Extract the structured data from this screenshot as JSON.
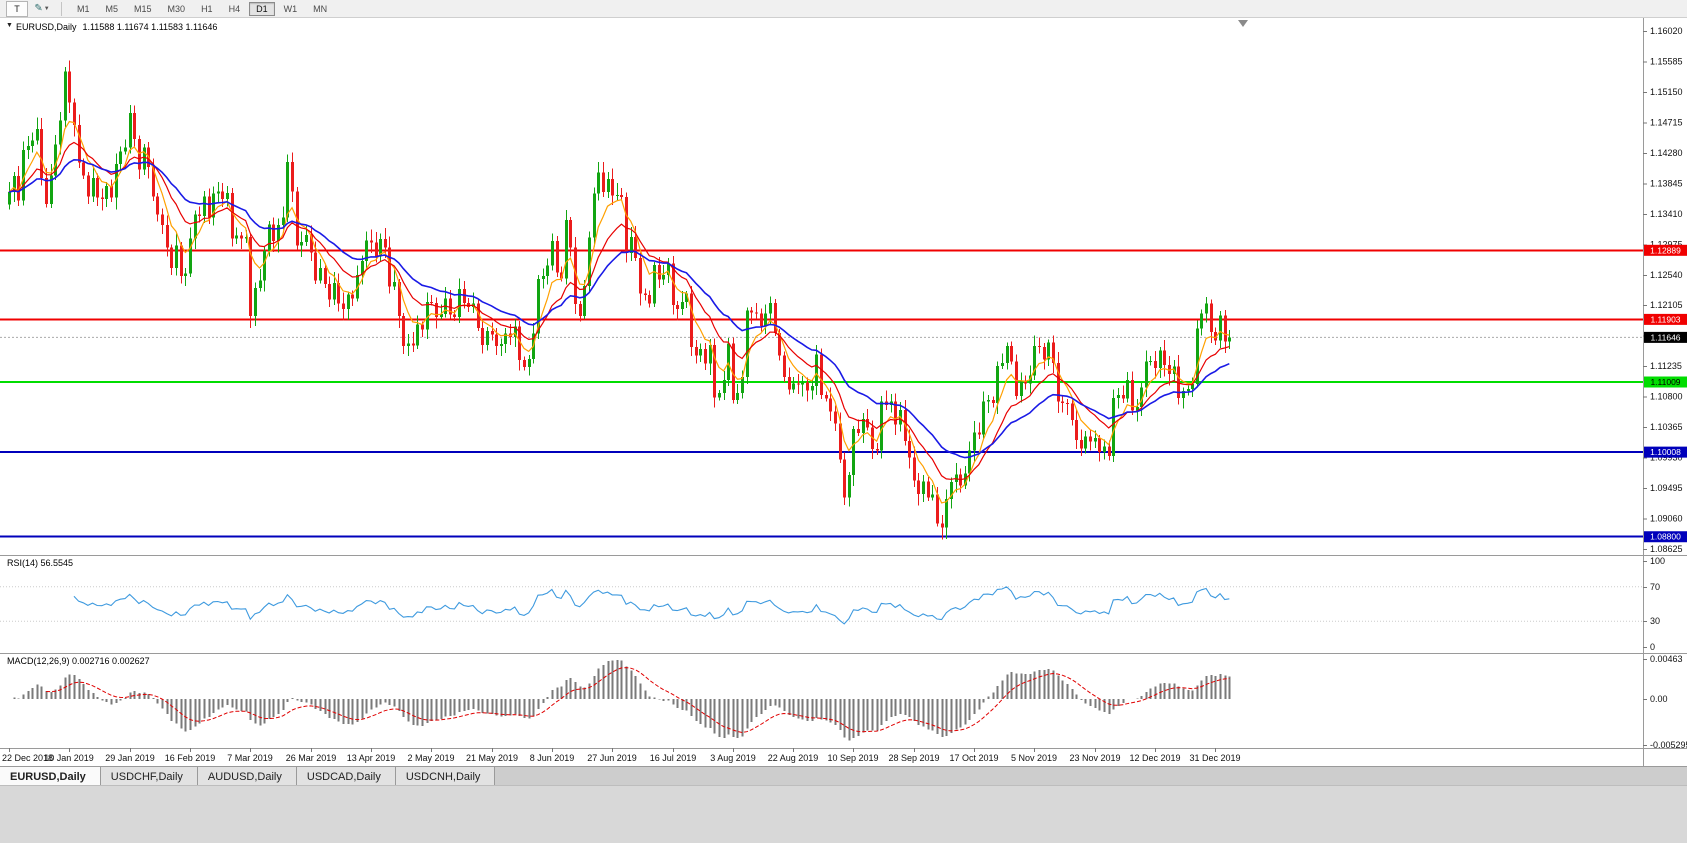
{
  "toolbar": {
    "t_button": "T",
    "pencil_icon": "pencil",
    "timeframes": [
      "M1",
      "M5",
      "M15",
      "M30",
      "H1",
      "H4",
      "D1",
      "W1",
      "MN"
    ],
    "active_timeframe": "D1"
  },
  "chart": {
    "title": "EURUSD,Daily",
    "ohlc": "1.11588 1.11674 1.11583 1.11646",
    "price_axis_labels": [
      "1.16020",
      "1.15585",
      "1.15150",
      "1.14715",
      "1.14280",
      "1.13845",
      "1.13410",
      "1.12975",
      "1.12540",
      "1.12105",
      "1.11670",
      "1.11235",
      "1.10800",
      "1.10365",
      "1.09930",
      "1.09495",
      "1.09060",
      "1.08625"
    ],
    "price_axis_top": 1.1602,
    "price_axis_step": 0.00435,
    "date_axis_labels": [
      "22 Dec 2018",
      "10 Jan 2019",
      "29 Jan 2019",
      "16 Feb 2019",
      "7 Mar 2019",
      "26 Mar 2019",
      "13 Apr 2019",
      "2 May 2019",
      "21 May 2019",
      "8 Jun 2019",
      "27 Jun 2019",
      "16 Jul 2019",
      "3 Aug 2019",
      "22 Aug 2019",
      "10 Sep 2019",
      "28 Sep 2019",
      "17 Oct 2019",
      "5 Nov 2019",
      "23 Nov 2019",
      "12 Dec 2019",
      "31 Dec 2019"
    ],
    "levels": [
      {
        "price": 1.12889,
        "label": "1.12889",
        "color": "#f00000",
        "text_color": "#ffffff"
      },
      {
        "price": 1.11903,
        "label": "1.11903",
        "color": "#f00000",
        "text_color": "#ffffff"
      },
      {
        "price": 1.11009,
        "label": "1.11009",
        "color": "#00dd00",
        "text_color": "#000000"
      },
      {
        "price": 1.10008,
        "label": "1.10008",
        "color": "#0000bb",
        "text_color": "#ffffff"
      },
      {
        "price": 1.088,
        "label": "1.08800",
        "color": "#0000bb",
        "text_color": "#ffffff"
      }
    ],
    "current_price": {
      "value": 1.11646,
      "label": "1.11646",
      "bg": "#000000",
      "fg": "#ffffff"
    }
  },
  "chart_data": {
    "type": "candlestick",
    "symbol": "EURUSD",
    "period": "Daily",
    "up_color": "#12a512",
    "down_color": "#eb1c1c",
    "ma_fast_color": "#ffa000",
    "ma_mid_color": "#e80000",
    "ma_slow_color": "#1a1ae6",
    "closes": [
      1.1372,
      1.1395,
      1.136,
      1.1432,
      1.1438,
      1.1446,
      1.1462,
      1.1392,
      1.1355,
      1.1396,
      1.144,
      1.1474,
      1.1544,
      1.15,
      1.1468,
      1.1414,
      1.1396,
      1.1366,
      1.1392,
      1.1364,
      1.1362,
      1.1381,
      1.1364,
      1.1412,
      1.143,
      1.1436,
      1.1485,
      1.1448,
      1.1404,
      1.1436,
      1.1408,
      1.1366,
      1.134,
      1.1325,
      1.1293,
      1.1264,
      1.1296,
      1.1252,
      1.1256,
      1.1306,
      1.134,
      1.1338,
      1.1366,
      1.1336,
      1.137,
      1.1373,
      1.1362,
      1.1371,
      1.1306,
      1.131,
      1.1306,
      1.1308,
      1.1195,
      1.1235,
      1.1246,
      1.1288,
      1.1326,
      1.1302,
      1.1325,
      1.1336,
      1.1415,
      1.1373,
      1.1296,
      1.1301,
      1.1311,
      1.1286,
      1.1246,
      1.1264,
      1.1241,
      1.1219,
      1.1242,
      1.1213,
      1.1205,
      1.1226,
      1.122,
      1.1254,
      1.1274,
      1.1303,
      1.13,
      1.128,
      1.1305,
      1.1293,
      1.1237,
      1.1244,
      1.1195,
      1.1152,
      1.1156,
      1.1153,
      1.1183,
      1.1176,
      1.1215,
      1.1214,
      1.1194,
      1.1198,
      1.122,
      1.1197,
      1.1194,
      1.1234,
      1.1214,
      1.1208,
      1.1213,
      1.1178,
      1.1154,
      1.1174,
      1.1169,
      1.1152,
      1.1155,
      1.117,
      1.1165,
      1.118,
      1.1132,
      1.1122,
      1.1134,
      1.117,
      1.1248,
      1.1252,
      1.1267,
      1.1302,
      1.1257,
      1.1249,
      1.1332,
      1.1293,
      1.1212,
      1.1195,
      1.1238,
      1.1307,
      1.137,
      1.14,
      1.1372,
      1.1391,
      1.1367,
      1.1368,
      1.1365,
      1.1285,
      1.1308,
      1.1278,
      1.1227,
      1.1225,
      1.1213,
      1.1268,
      1.1247,
      1.1254,
      1.127,
      1.1211,
      1.1205,
      1.1215,
      1.1227,
      1.1151,
      1.1139,
      1.1148,
      1.1127,
      1.1154,
      1.1079,
      1.1085,
      1.1104,
      1.1156,
      1.1075,
      1.1085,
      1.1108,
      1.1203,
      1.12,
      1.1199,
      1.1181,
      1.1199,
      1.1214,
      1.1171,
      1.1139,
      1.1108,
      1.109,
      1.1099,
      1.1097,
      1.11,
      1.1089,
      1.1095,
      1.114,
      1.1082,
      1.1077,
      1.1059,
      1.1042,
      1.099,
      1.0936,
      1.0968,
      1.1034,
      1.1028,
      1.1048,
      1.1036,
      1.1005,
      1.1003,
      1.1073,
      1.1068,
      1.1073,
      1.104,
      1.1061,
      1.1017,
      1.0993,
      1.096,
      1.0941,
      1.0959,
      1.0936,
      1.094,
      1.0899,
      1.0893,
      1.0934,
      1.0958,
      1.0969,
      1.0953,
      1.097,
      1.1003,
      1.1029,
      1.1026,
      1.1073,
      1.1075,
      1.1071,
      1.1124,
      1.1128,
      1.1152,
      1.113,
      1.1081,
      1.1103,
      1.1099,
      1.111,
      1.1152,
      1.1151,
      1.1133,
      1.1157,
      1.1128,
      1.1073,
      1.1071,
      1.107,
      1.1047,
      1.1018,
      1.1006,
      1.1023,
      1.1016,
      1.1021,
      1.1001,
      1.1009,
      1.0995,
      1.1078,
      1.1082,
      1.1077,
      1.1104,
      1.106,
      1.1065,
      1.1093,
      1.113,
      1.1131,
      1.1121,
      1.1146,
      1.1125,
      1.1112,
      1.1123,
      1.1078,
      1.1088,
      1.1091,
      1.1098,
      1.1177,
      1.1199,
      1.1213,
      1.1172,
      1.116,
      1.1196,
      1.1159,
      1.11646
    ]
  },
  "rsi": {
    "label": "RSI(14) 56.5545",
    "axis_labels": [
      "100",
      "70",
      "30",
      "0"
    ],
    "levels": [
      70,
      30
    ],
    "line_color": "#3e9adf"
  },
  "macd": {
    "label": "MACD(12,26,9) 0.002716 0.002627",
    "axis_labels": [
      "0.00463",
      "0.00",
      "-0.005295"
    ],
    "axis_max": 0.00463,
    "axis_min": -0.005295,
    "hist_color": "#7a7a7a",
    "signal_color": "#e00000"
  },
  "tabs": {
    "items": [
      "EURUSD,Daily",
      "USDCHF,Daily",
      "AUDUSD,Daily",
      "USDCAD,Daily",
      "USDCNH,Daily"
    ],
    "active": "EURUSD,Daily"
  }
}
